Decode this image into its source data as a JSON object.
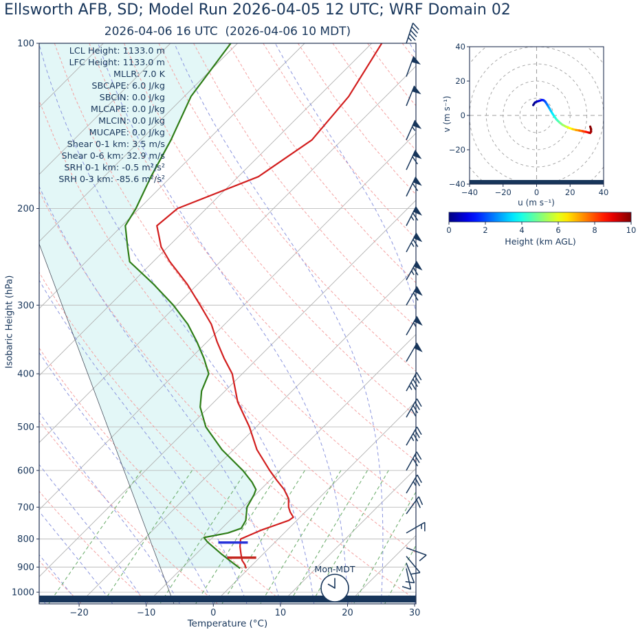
{
  "title": "Ellsworth AFB, SD; Model Run 2026-04-05 12 UTC; WRF Domain 02",
  "subtitle": "2026-04-06 16 UTC  (2026-04-06 10 MDT)",
  "colors": {
    "navy": "#17355a",
    "frame": "#1f2f50",
    "profile_red": "#d21e1e",
    "profile_green": "#2e7d17",
    "isotherm_gray": "#b0b0b0",
    "grid_gray": "#bcbcbc",
    "dry_adiabat": "#f4a0a0",
    "moist_adiabat": "#8a94de",
    "mixing_green": "#6fae6f",
    "shade_cyan": "#e3f7f7",
    "marker_blue": "#2632d9",
    "marker_red": "#c4271f",
    "ring_gray": "#9e9e9e"
  },
  "stats": {
    "lines": [
      "LCL Height: 1133.0 m",
      "LFC Height: 1133.0 m",
      "MLLR: 7.0 K",
      "SBCAPE: 6.0 J/kg",
      "SBCIN: 0.0 J/kg",
      "MLCAPE: 0.0 J/kg",
      "MLCIN: 0.0 J/kg",
      "MUCAPE: 0.0 J/kg",
      "Shear 0-1 km: 3.5 m/s",
      "Shear 0-6 km: 32.9 m/s",
      "SRH 0-1 km: -0.5 m²/s²",
      "SRH 0-3 km: -85.6 m²/s²"
    ]
  },
  "skewt": {
    "ylabel": "Isobaric Height (hPa)",
    "xlabel": "Temperature (°C)",
    "day_label": "Mon-MDT",
    "pressure_ticks": [
      100,
      200,
      300,
      400,
      500,
      600,
      700,
      800,
      900,
      1000
    ],
    "temp_ticks": [
      -20,
      -10,
      0,
      10,
      20,
      30
    ]
  },
  "hodograph": {
    "xlabel": "u (m s⁻¹)",
    "ylabel": "v (m s⁻¹)",
    "ticks": [
      -40,
      -20,
      0,
      20,
      40
    ],
    "colorbar_label": "Height (km AGL)",
    "colorbar_ticks": [
      0,
      2,
      4,
      6,
      8,
      10
    ]
  },
  "chart_data": [
    {
      "type": "line",
      "subtype": "skewt_sounding",
      "title": "2026-04-06 16 UTC (2026-04-06 10 MDT)",
      "xlabel": "Temperature (°C)",
      "ylabel": "Isobaric Height (hPa)",
      "x_ticks": [
        -20,
        -10,
        0,
        10,
        20,
        30
      ],
      "y_ticks": [
        100,
        200,
        300,
        400,
        500,
        600,
        700,
        800,
        900,
        1000
      ],
      "y_log": true,
      "ylim": [
        1050,
        100
      ],
      "xlim_at_surface_C": [
        -26,
        30.5
      ],
      "skew_deg": 45,
      "series": [
        {
          "name": "temperature",
          "color": "#d21e1e",
          "pressure_hPa": [
            100,
            125,
            150,
            175,
            200,
            215,
            235,
            250,
            275,
            300,
            325,
            350,
            375,
            400,
            450,
            500,
            550,
            600,
            625,
            650,
            675,
            700,
            715,
            730,
            740,
            755,
            770,
            800,
            825,
            850,
            875,
            890,
            905
          ],
          "values_C": [
            -58.5,
            -55.5,
            -54.5,
            -57,
            -64.3,
            -64.8,
            -61,
            -57.5,
            -51.5,
            -46.5,
            -42,
            -38.5,
            -35,
            -31.5,
            -26.5,
            -21,
            -16.5,
            -11.5,
            -9,
            -6.5,
            -4.5,
            -3.2,
            -2.2,
            -1.0,
            -1.2,
            -2.5,
            -3.8,
            -5.6,
            -4.6,
            -3.4,
            -2.2,
            -1.2,
            -0.4
          ]
        },
        {
          "name": "dewpoint",
          "color": "#2e7d17",
          "pressure_hPa": [
            100,
            125,
            150,
            175,
            200,
            215,
            235,
            250,
            275,
            300,
            325,
            350,
            375,
            400,
            430,
            460,
            500,
            550,
            600,
            630,
            650,
            665,
            700,
            740,
            765,
            780,
            795,
            810,
            850,
            880,
            905
          ],
          "values_C": [
            -81,
            -79,
            -75.5,
            -73,
            -70.5,
            -69.5,
            -66,
            -63.5,
            -56.5,
            -50.5,
            -45.5,
            -41.5,
            -38,
            -35,
            -33.5,
            -31.3,
            -27.5,
            -21.7,
            -15.5,
            -12.4,
            -10.7,
            -10.2,
            -9.4,
            -7.6,
            -7.1,
            -8.4,
            -11.3,
            -10.1,
            -6.4,
            -3.6,
            -1.3
          ]
        }
      ],
      "markers": [
        {
          "name": "level-marker-blue",
          "pressure_hPa": 812,
          "temp_from_C": -8.4,
          "temp_to_C": -4.0,
          "color": "#2632d9"
        },
        {
          "name": "level-marker-red",
          "pressure_hPa": 865,
          "temp_from_C": -4.8,
          "temp_to_C": -0.5,
          "color": "#c4271f"
        }
      ],
      "wind_barbs_p_kt_angle": [
        [
          100,
          45,
          18
        ],
        [
          115,
          48,
          20
        ],
        [
          130,
          50,
          22
        ],
        [
          150,
          54,
          24
        ],
        [
          170,
          58,
          25
        ],
        [
          190,
          62,
          26
        ],
        [
          215,
          64,
          27
        ],
        [
          240,
          65,
          28
        ],
        [
          270,
          63,
          29
        ],
        [
          300,
          60,
          30
        ],
        [
          340,
          56,
          30
        ],
        [
          380,
          50,
          30
        ],
        [
          430,
          45,
          29
        ],
        [
          480,
          41,
          30
        ],
        [
          540,
          37,
          30
        ],
        [
          600,
          32,
          29
        ],
        [
          660,
          27,
          31
        ],
        [
          720,
          21,
          36
        ],
        [
          780,
          14,
          60
        ],
        [
          830,
          11,
          110
        ],
        [
          860,
          10,
          140
        ],
        [
          885,
          9,
          158
        ],
        [
          905,
          8,
          168
        ]
      ],
      "background": {
        "isotherm_step_C": 10,
        "dry_adiabat_theta_K": [
          230,
          240,
          250,
          260,
          270,
          280,
          290,
          300,
          310,
          320,
          330,
          340,
          350,
          360,
          370,
          380,
          390,
          400,
          410,
          420,
          430,
          440
        ],
        "moist_adiabat_surface_T_C": [
          -60,
          -55,
          -50,
          -45,
          -40,
          -35,
          -30,
          -25,
          -20,
          -15,
          -10,
          -5,
          0,
          5,
          10,
          15,
          20,
          25,
          30,
          35,
          40
        ],
        "mixing_ratio_g_kg": [
          0.5,
          1,
          2,
          3,
          4,
          6,
          8,
          10,
          15,
          20
        ]
      }
    },
    {
      "type": "line",
      "subtype": "hodograph",
      "xlabel": "u (m s⁻¹)",
      "ylabel": "v (m s⁻¹)",
      "xlim": [
        -40,
        40
      ],
      "ylim": [
        -40,
        40
      ],
      "rings": [
        10,
        20,
        30,
        40,
        50
      ],
      "trace_uvh": [
        [
          -2,
          6,
          0
        ],
        [
          -1,
          7.5,
          0.2
        ],
        [
          0,
          8,
          0.4
        ],
        [
          1,
          8.3,
          0.7
        ],
        [
          2,
          8.6,
          0.9
        ],
        [
          3.2,
          9,
          1.2
        ],
        [
          4.2,
          8.8,
          1.5
        ],
        [
          5,
          8.2,
          1.8
        ],
        [
          6,
          6.8,
          2.2
        ],
        [
          7,
          5.2,
          2.6
        ],
        [
          8,
          3.5,
          3.0
        ],
        [
          9.2,
          1.5,
          3.4
        ],
        [
          10.5,
          -0.5,
          3.8
        ],
        [
          12,
          -2.5,
          4.2
        ],
        [
          13.8,
          -4.2,
          4.7
        ],
        [
          15.5,
          -5.5,
          5.1
        ],
        [
          17.5,
          -6.5,
          5.6
        ],
        [
          19.5,
          -7.3,
          6.0
        ],
        [
          21.5,
          -8,
          6.5
        ],
        [
          23.5,
          -8.5,
          7.0
        ],
        [
          25.5,
          -8.8,
          7.4
        ],
        [
          27.5,
          -9.2,
          7.9
        ],
        [
          29.5,
          -9.6,
          8.4
        ],
        [
          31,
          -10,
          8.9
        ],
        [
          32,
          -10.2,
          9.3
        ],
        [
          32.5,
          -9.5,
          9.6
        ],
        [
          32.5,
          -8,
          9.8
        ],
        [
          32,
          -6.5,
          10
        ]
      ],
      "colorbar": {
        "label": "Height (km AGL)",
        "ticks": [
          0,
          2,
          4,
          6,
          8,
          10
        ],
        "range_km": [
          0,
          10
        ],
        "colormap": "jet"
      }
    }
  ]
}
